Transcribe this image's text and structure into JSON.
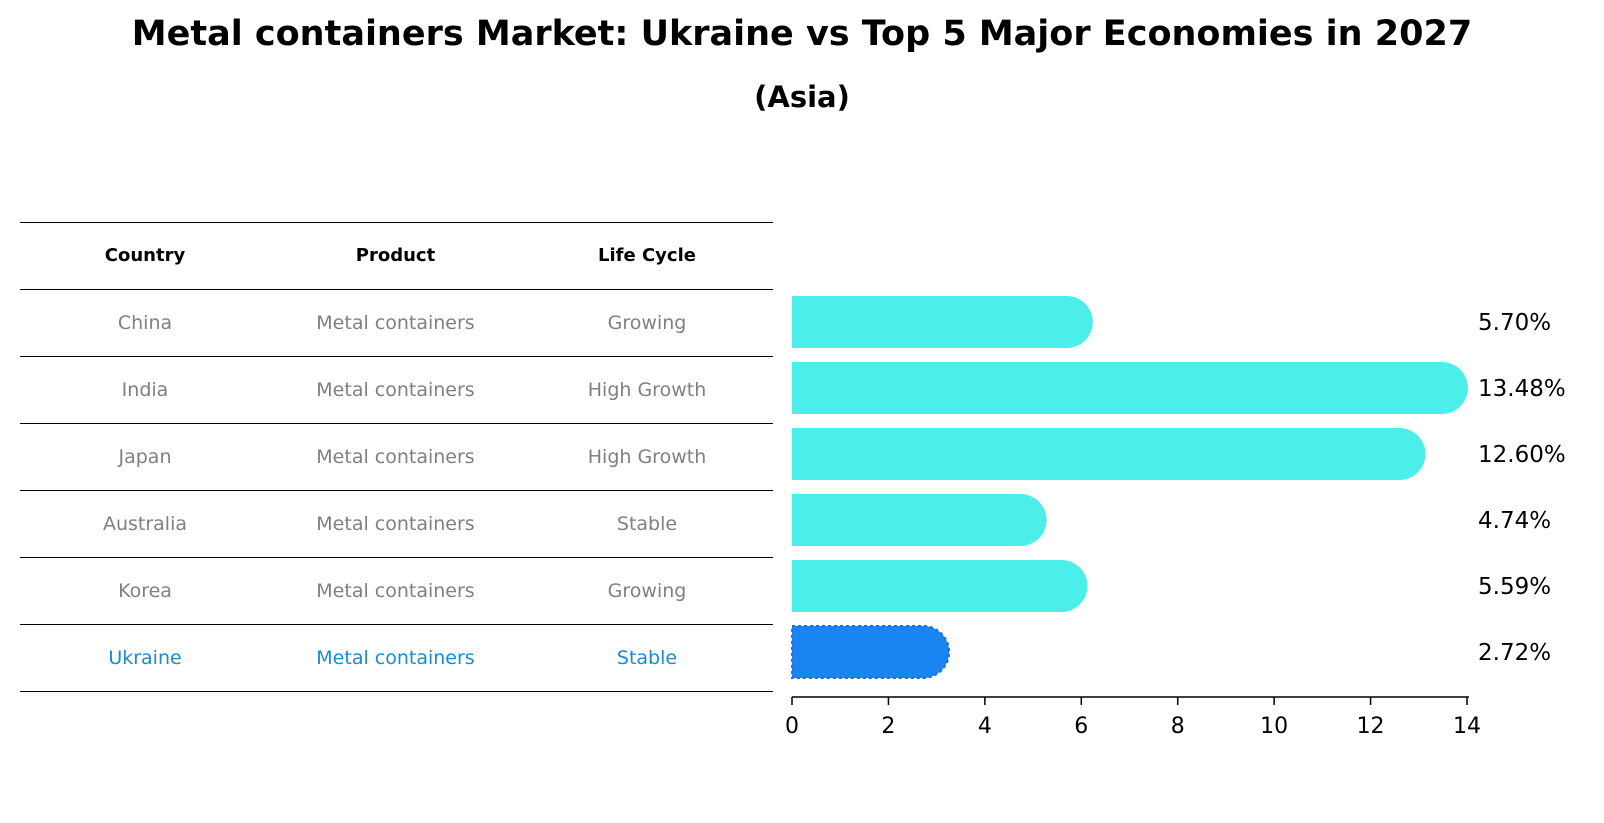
{
  "title": "Metal containers Market: Ukraine vs Top 5 Major Economies in 2027",
  "subtitle": "(Asia)",
  "table": {
    "headers": [
      "Country",
      "Product",
      "Life Cycle"
    ],
    "rows": [
      [
        "China",
        "Metal containers",
        "Growing"
      ],
      [
        "India",
        "Metal containers",
        "High Growth"
      ],
      [
        "Japan",
        "Metal containers",
        "High Growth"
      ],
      [
        "Australia",
        "Metal containers",
        "Stable"
      ],
      [
        "Korea",
        "Metal containers",
        "Growing"
      ],
      [
        "Ukraine",
        "Metal containers",
        "Stable"
      ]
    ],
    "highlight_row": 5
  },
  "chart_data": {
    "type": "bar",
    "orientation": "horizontal",
    "categories": [
      "China",
      "India",
      "Japan",
      "Australia",
      "Korea",
      "Ukraine"
    ],
    "values": [
      5.7,
      13.48,
      12.6,
      4.74,
      5.59,
      2.72
    ],
    "value_labels": [
      "5.70%",
      "13.48%",
      "12.60%",
      "4.74%",
      "5.59%",
      "2.72%"
    ],
    "xlim": [
      0,
      14
    ],
    "xticks": [
      "0",
      "2",
      "4",
      "6",
      "8",
      "10",
      "12",
      "14"
    ],
    "colors": {
      "default": "#4ceeea",
      "highlight": "#1a85f0"
    },
    "highlight": "Ukraine"
  }
}
